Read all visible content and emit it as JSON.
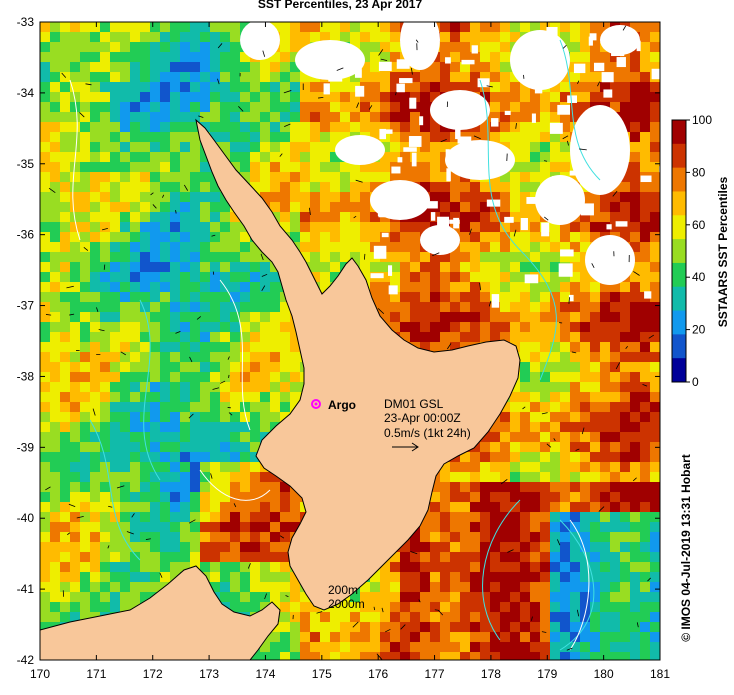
{
  "title": "SST Percentiles, 23 Apr 2017",
  "map": {
    "x_ticks": [
      "170",
      "171",
      "172",
      "173",
      "174",
      "175",
      "176",
      "177",
      "178",
      "179",
      "180",
      "181"
    ],
    "y_ticks": [
      "-33",
      "-34",
      "-35",
      "-36",
      "-37",
      "-38",
      "-39",
      "-40",
      "-41",
      "-42"
    ],
    "lon_range": [
      170,
      181
    ],
    "lat_range": [
      -42,
      -33
    ],
    "land_color": "#f8c79a",
    "coast_color": "#000000",
    "contour_color": "#40e0e0",
    "isobath_color": "#ffffff"
  },
  "annotations": {
    "argo_label": "Argo",
    "argo_marker_color": "#ff00ff",
    "velocity_title": "DM01 GSL",
    "velocity_date": "23-Apr 00:00Z",
    "velocity_scale": "0.5m/s (1kt 24h)",
    "isobath_200": "200m",
    "isobath_2000": "2000m"
  },
  "colorbar": {
    "label": "SSTAARS SST Percentiles",
    "ticks": [
      "100",
      "80",
      "60",
      "40",
      "20",
      "0"
    ],
    "colors": [
      "#a00000",
      "#cc3300",
      "#ee7700",
      "#ffbb00",
      "#eeee00",
      "#99dd22",
      "#22cc55",
      "#11bbaa",
      "#1199ee",
      "#1155cc",
      "#000099"
    ]
  },
  "credit": "© IMOS 04-Jul-2019 13:31 Hobart"
}
